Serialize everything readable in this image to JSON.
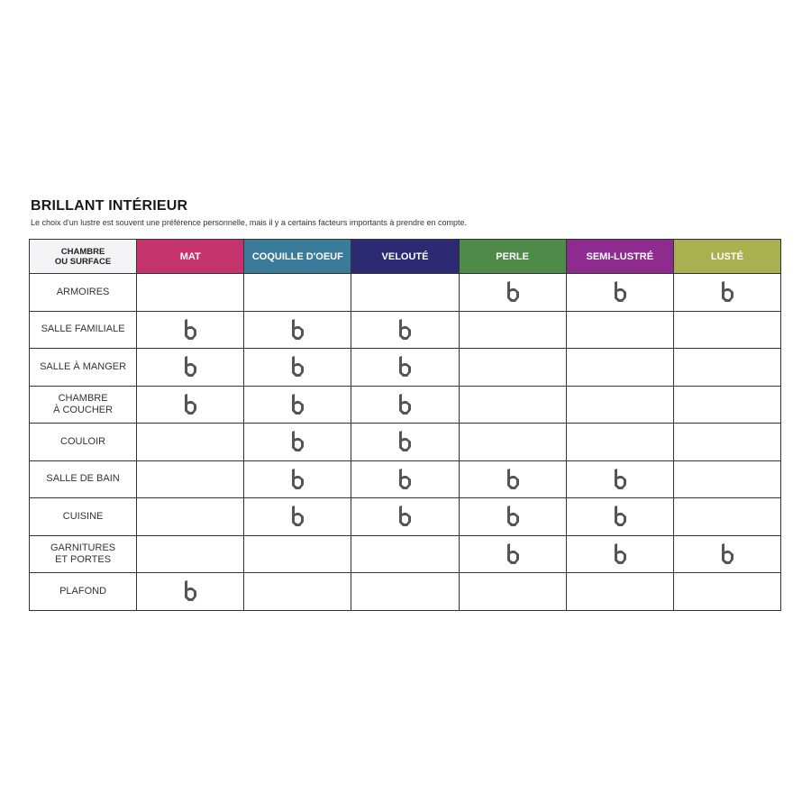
{
  "title": "BRILLANT INTÉRIEUR",
  "subtitle": "Le choix d'un lustre est souvent une préférence personnelle, mais il y a certains facteurs importants à prendre en compte.",
  "table": {
    "corner_header": "CHAMBRE\nOU SURFACE",
    "columns": [
      {
        "label": "MAT",
        "color": "#c4336b"
      },
      {
        "label": "COQUILLE D'OEUF",
        "color": "#3a7b9a"
      },
      {
        "label": "VELOUTÉ",
        "color": "#2b2a72"
      },
      {
        "label": "PERLE",
        "color": "#4e8a48"
      },
      {
        "label": "SEMI-LUSTRÉ",
        "color": "#8e2b8f"
      },
      {
        "label": "LUSTÉ",
        "color": "#a8b050"
      }
    ],
    "mark_icon": "brand-b-logo-icon",
    "mark_color": "#555555",
    "rows": [
      {
        "label": "ARMOIRES",
        "marks": [
          false,
          false,
          false,
          true,
          true,
          true
        ]
      },
      {
        "label": "SALLE FAMILIALE",
        "marks": [
          true,
          true,
          true,
          false,
          false,
          false
        ]
      },
      {
        "label": "SALLE À MANGER",
        "marks": [
          true,
          true,
          true,
          false,
          false,
          false
        ]
      },
      {
        "label": "CHAMBRE\nÀ COUCHER",
        "marks": [
          true,
          true,
          true,
          false,
          false,
          false
        ]
      },
      {
        "label": "COULOIR",
        "marks": [
          false,
          true,
          true,
          false,
          false,
          false
        ]
      },
      {
        "label": "SALLE DE BAIN",
        "marks": [
          false,
          true,
          true,
          true,
          true,
          false
        ]
      },
      {
        "label": "CUISINE",
        "marks": [
          false,
          true,
          true,
          true,
          true,
          false
        ]
      },
      {
        "label": "GARNITURES\nET PORTES",
        "marks": [
          false,
          false,
          false,
          true,
          true,
          true
        ]
      },
      {
        "label": "PLAFOND",
        "marks": [
          true,
          false,
          false,
          false,
          false,
          false
        ]
      }
    ]
  }
}
